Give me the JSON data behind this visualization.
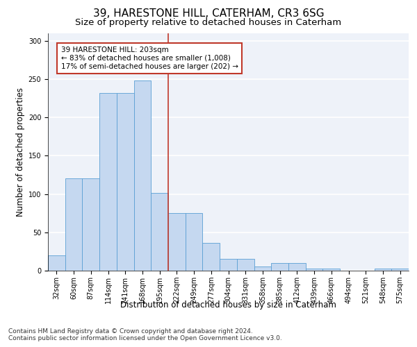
{
  "title1": "39, HARESTONE HILL, CATERHAM, CR3 6SG",
  "title2": "Size of property relative to detached houses in Caterham",
  "xlabel": "Distribution of detached houses by size in Caterham",
  "ylabel": "Number of detached properties",
  "categories": [
    "32sqm",
    "60sqm",
    "87sqm",
    "114sqm",
    "141sqm",
    "168sqm",
    "195sqm",
    "222sqm",
    "249sqm",
    "277sqm",
    "304sqm",
    "331sqm",
    "358sqm",
    "385sqm",
    "412sqm",
    "439sqm",
    "466sqm",
    "494sqm",
    "521sqm",
    "548sqm",
    "575sqm"
  ],
  "values": [
    20,
    120,
    120,
    232,
    232,
    248,
    101,
    75,
    75,
    36,
    15,
    15,
    5,
    10,
    10,
    3,
    3,
    0,
    0,
    3,
    3
  ],
  "bar_color": "#c5d8f0",
  "bar_edge_color": "#5a9fd4",
  "vline_x": 6.5,
  "vline_color": "#c0392b",
  "annotation_box_text": "39 HARESTONE HILL: 203sqm\n← 83% of detached houses are smaller (1,008)\n17% of semi-detached houses are larger (202) →",
  "ylim": [
    0,
    310
  ],
  "yticks": [
    0,
    50,
    100,
    150,
    200,
    250,
    300
  ],
  "footnote": "Contains HM Land Registry data © Crown copyright and database right 2024.\nContains public sector information licensed under the Open Government Licence v3.0.",
  "bar_width": 1.0,
  "bg_color": "#eef2f9",
  "grid_color": "#ffffff",
  "title1_fontsize": 11,
  "title2_fontsize": 9.5,
  "axis_label_fontsize": 8.5,
  "tick_fontsize": 7,
  "footnote_fontsize": 6.5,
  "ann_fontsize": 7.5
}
